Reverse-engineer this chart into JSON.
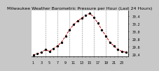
{
  "title": "Milwaukee Weather Barometric Pressure per Hour (Last 24 Hours)",
  "background_color": "#c8c8c8",
  "plot_bg_color": "#ffffff",
  "line_color": "#cc0000",
  "dot_color": "#000000",
  "grid_color": "#888888",
  "ylim": [
    29.35,
    30.55
  ],
  "yticks": [
    29.4,
    29.6,
    29.8,
    30.0,
    30.2,
    30.4
  ],
  "ytick_labels": [
    "29.4",
    "29.6",
    "29.8",
    "30.0",
    "30.2",
    "30.4"
  ],
  "hours": [
    0,
    1,
    2,
    3,
    4,
    5,
    6,
    7,
    8,
    9,
    10,
    11,
    12,
    13,
    14,
    15,
    16,
    17,
    18,
    19,
    20,
    21,
    22,
    23
  ],
  "xtick_labels": [
    "1",
    "",
    "3",
    "",
    "5",
    "",
    "7",
    "",
    "9",
    "",
    "11",
    "",
    "13",
    "",
    "15",
    "",
    "17",
    "",
    "19",
    "",
    "21",
    "",
    "23",
    ""
  ],
  "pressure": [
    29.38,
    29.42,
    29.45,
    29.52,
    29.48,
    29.55,
    29.62,
    29.72,
    29.88,
    30.05,
    30.18,
    30.28,
    30.35,
    30.42,
    30.48,
    30.38,
    30.22,
    30.05,
    29.88,
    29.72,
    29.62,
    29.52,
    29.48,
    29.45
  ],
  "vline_positions": [
    3,
    6,
    9,
    12,
    15,
    18,
    21
  ],
  "title_fontsize": 4.5,
  "tick_fontsize": 3.5,
  "linewidth": 0.7,
  "dot_size": 2
}
